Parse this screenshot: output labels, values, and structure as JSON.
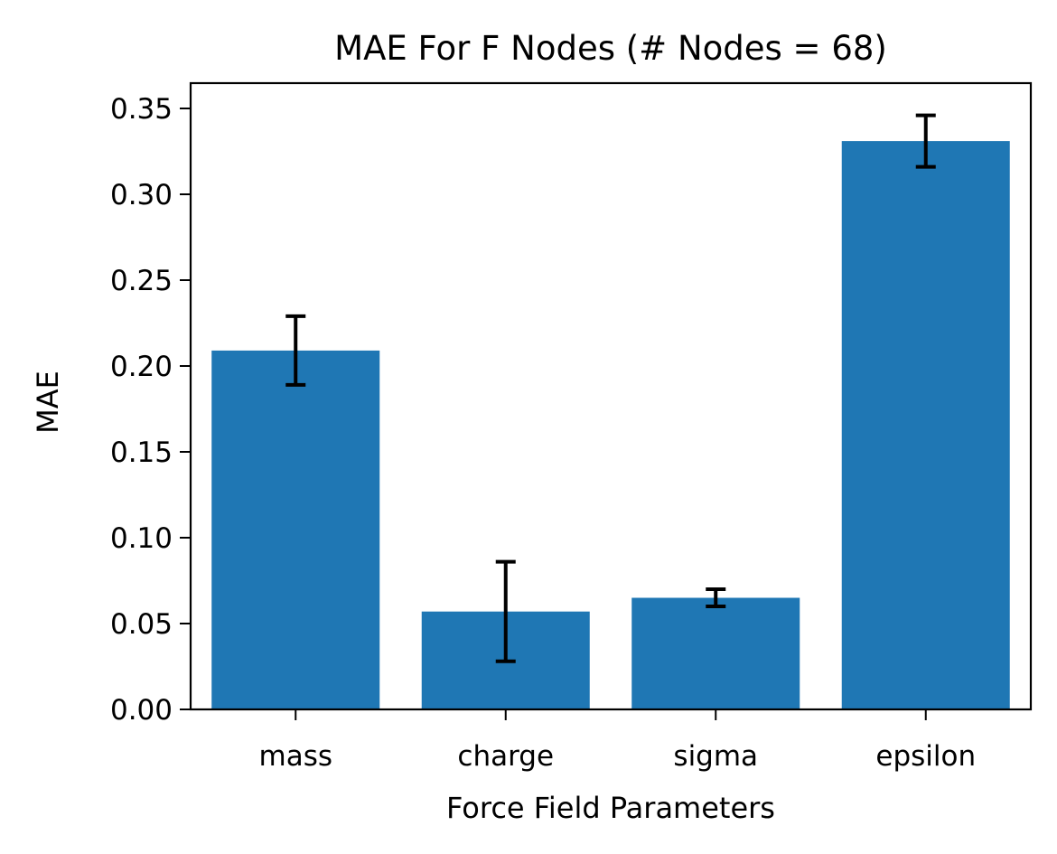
{
  "chart_data": {
    "type": "bar",
    "title": "MAE For F Nodes (# Nodes = 68)",
    "xlabel": "Force Field Parameters",
    "ylabel": "MAE",
    "categories": [
      "mass",
      "charge",
      "sigma",
      "epsilon"
    ],
    "values": [
      0.209,
      0.057,
      0.065,
      0.331
    ],
    "errors": [
      0.02,
      0.029,
      0.005,
      0.015
    ],
    "ylim": [
      0,
      0.365
    ],
    "yticks": [
      0.0,
      0.05,
      0.1,
      0.15,
      0.2,
      0.25,
      0.3,
      0.35
    ],
    "ytick_labels": [
      "0.00",
      "0.05",
      "0.10",
      "0.15",
      "0.20",
      "0.25",
      "0.30",
      "0.35"
    ],
    "grid": false,
    "colors": {
      "bar": "#1f77b4",
      "error": "#000000",
      "axis": "#000000"
    }
  }
}
